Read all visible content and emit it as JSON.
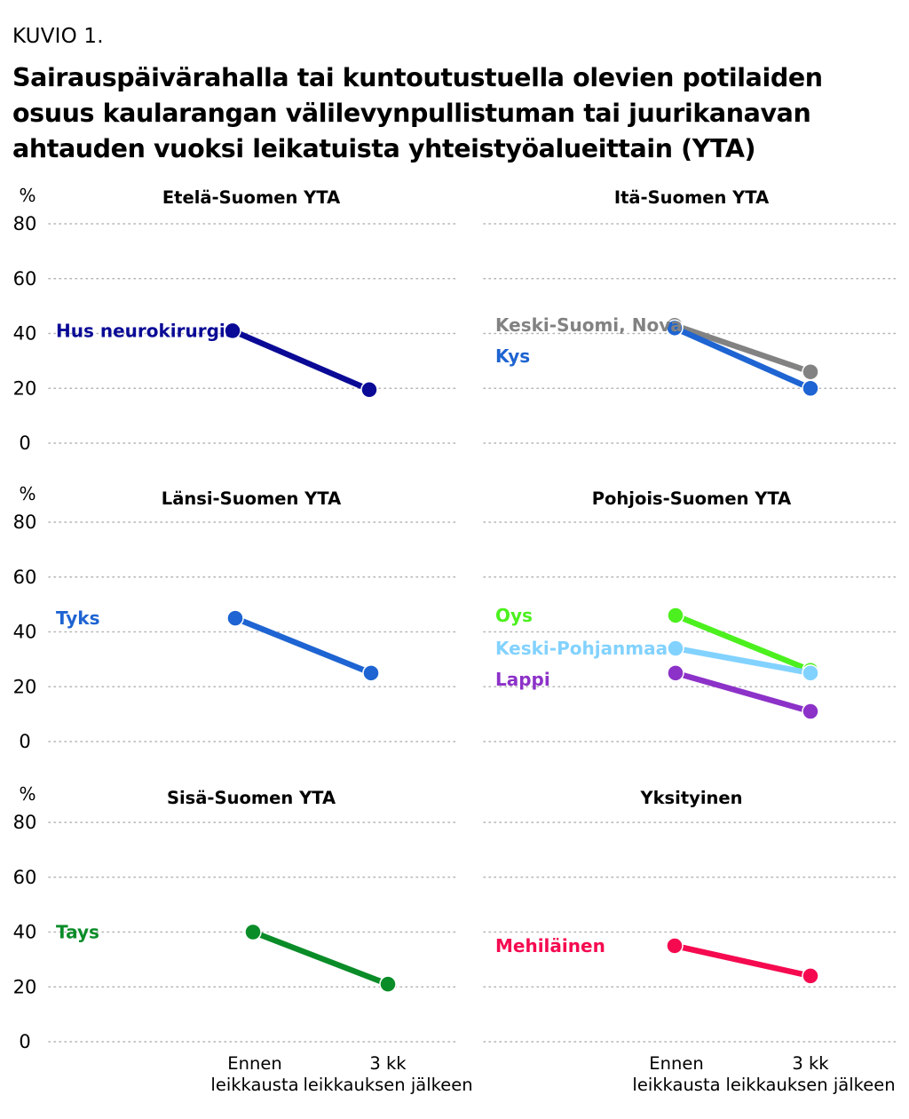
{
  "figure_label": "KUVIO 1.",
  "title": "Sairauspäivärahalla tai kuntoutustuella olevien potilaiden osuus kaularangan välilevynpullistuman tai juurikanavan ahtauden vuoksi leikatuista yhteistyöalueittain (YTA)",
  "chart_data": [
    {
      "type": "line",
      "title": "Etelä-Suomen YTA",
      "ylabel": "%",
      "ylim": [
        0,
        80
      ],
      "yticks": [
        "0",
        "20",
        "40",
        "60",
        "80"
      ],
      "categories": [
        "Ennen leikkausta",
        "3 kk leikkauksen jälkeen"
      ],
      "series": [
        {
          "name": "Hus neurokirurgia",
          "color": "#0a0a96",
          "values": [
            41,
            19.5
          ]
        }
      ]
    },
    {
      "type": "line",
      "title": "Itä-Suomen YTA",
      "ylabel": "",
      "ylim": [
        0,
        80
      ],
      "yticks": [],
      "categories": [
        "Ennen leikkausta",
        "3 kk leikkauksen jälkeen"
      ],
      "series": [
        {
          "name": "Keski-Suomi, Nova",
          "color": "#828282",
          "values": [
            43,
            26
          ]
        },
        {
          "name": "Kys",
          "color": "#1e64d2",
          "values": [
            42,
            20
          ]
        }
      ]
    },
    {
      "type": "line",
      "title": "Länsi-Suomen YTA",
      "ylabel": "%",
      "ylim": [
        0,
        80
      ],
      "yticks": [
        "0",
        "20",
        "40",
        "60",
        "80"
      ],
      "categories": [
        "Ennen leikkausta",
        "3 kk leikkauksen jälkeen"
      ],
      "series": [
        {
          "name": "Tyks",
          "color": "#1e64d2",
          "values": [
            45,
            25
          ]
        }
      ]
    },
    {
      "type": "line",
      "title": "Pohjois-Suomen YTA",
      "ylabel": "",
      "ylim": [
        0,
        80
      ],
      "yticks": [],
      "categories": [
        "Ennen leikkausta",
        "3 kk leikkauksen jälkeen"
      ],
      "series": [
        {
          "name": "Oys",
          "color": "#4cf01e",
          "values": [
            46,
            26
          ]
        },
        {
          "name": "Keski-Pohjanmaa",
          "color": "#82d2ff",
          "values": [
            34,
            25
          ]
        },
        {
          "name": "Lappi",
          "color": "#8c32c8",
          "values": [
            25,
            11
          ]
        }
      ]
    },
    {
      "type": "line",
      "title": "Sisä-Suomen YTA",
      "ylabel": "%",
      "ylim": [
        0,
        80
      ],
      "yticks": [
        "0",
        "20",
        "40",
        "60",
        "80"
      ],
      "categories": [
        "Ennen leikkausta",
        "3 kk leikkauksen jälkeen"
      ],
      "series": [
        {
          "name": "Tays",
          "color": "#0a8c28",
          "values": [
            40,
            21
          ]
        }
      ]
    },
    {
      "type": "line",
      "title": "Yksityinen",
      "ylabel": "",
      "ylim": [
        0,
        80
      ],
      "yticks": [],
      "categories": [
        "Ennen leikkausta",
        "3 kk leikkauksen jälkeen"
      ],
      "series": [
        {
          "name": "Mehiläinen",
          "color": "#f50a50",
          "values": [
            35,
            24
          ]
        }
      ]
    }
  ],
  "x_axis_labels": [
    [
      "Ennen",
      "leikkausta"
    ],
    [
      "3 kk",
      "leikkauksen jälkeen"
    ]
  ]
}
